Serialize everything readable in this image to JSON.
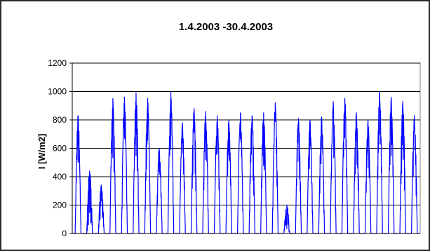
{
  "chart_data": {
    "type": "line",
    "title": "1.4.2003 -30.4.2003",
    "xlabel": "",
    "ylabel": "I [W/m2]",
    "ylim": [
      0,
      1200
    ],
    "yticks": [
      0,
      200,
      400,
      600,
      800,
      1000,
      1200
    ],
    "xlim": [
      0,
      30
    ],
    "grid": true,
    "legend": "none",
    "series": [
      {
        "color": "#0000ff",
        "daily_peaks": [
          830,
          440,
          340,
          950,
          960,
          990,
          950,
          600,
          1000,
          780,
          880,
          860,
          830,
          800,
          850,
          830,
          850,
          920,
          200,
          810,
          800,
          820,
          930,
          950,
          850,
          800,
          1000,
          960,
          930,
          830
        ]
      }
    ]
  }
}
